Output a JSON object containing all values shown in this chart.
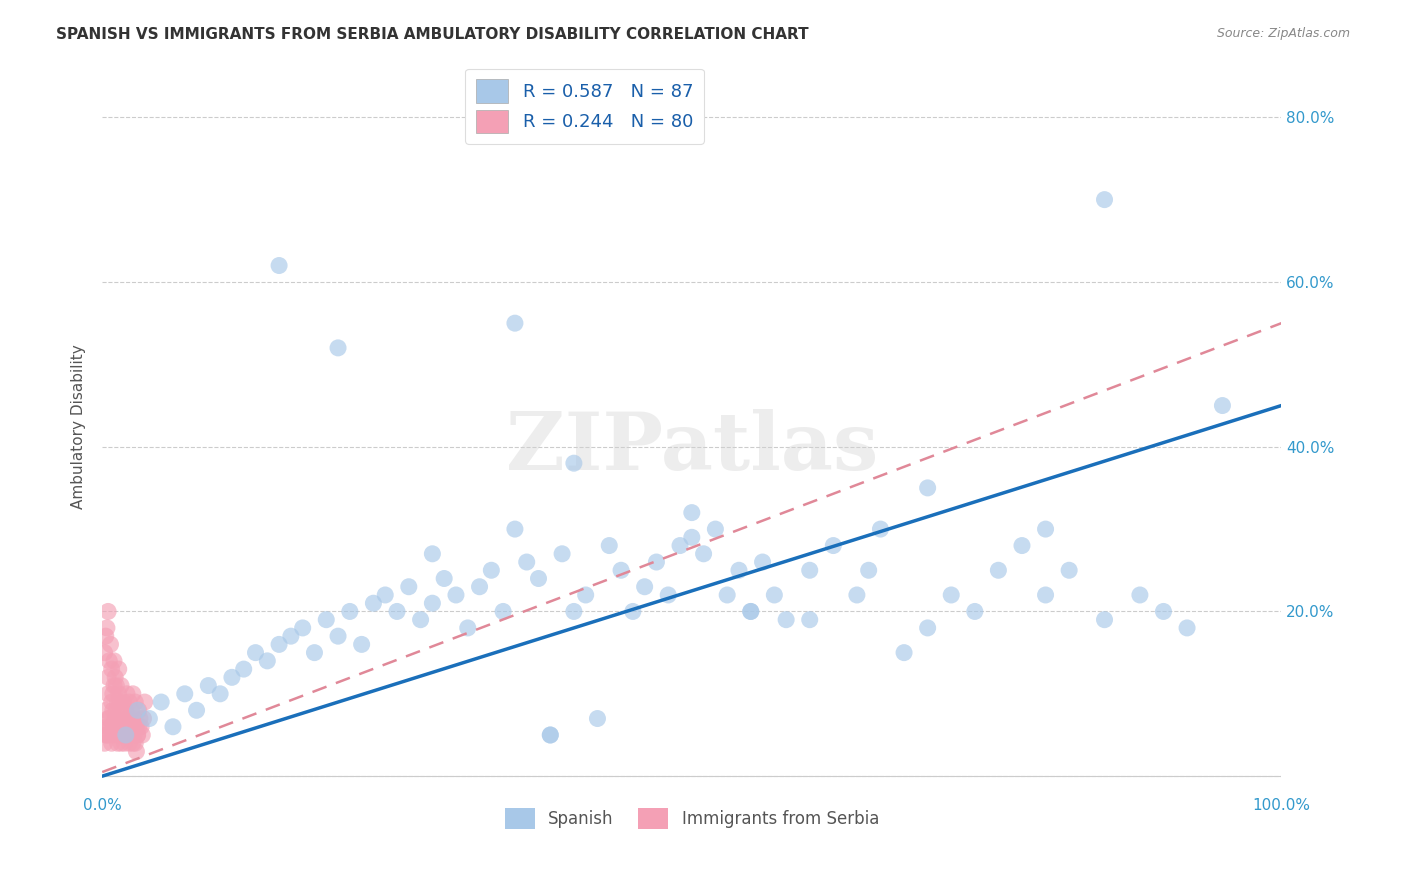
{
  "title": "SPANISH VS IMMIGRANTS FROM SERBIA AMBULATORY DISABILITY CORRELATION CHART",
  "source": "Source: ZipAtlas.com",
  "ylabel": "Ambulatory Disability",
  "watermark": "ZIPatlas",
  "R_spanish": 0.587,
  "N_spanish": 87,
  "R_serbia": 0.244,
  "N_serbia": 80,
  "spanish_color": "#a8c8e8",
  "serbia_color": "#f4a0b5",
  "spanish_line_color": "#1a6fba",
  "serbia_line_color": "#e08898",
  "background_color": "#ffffff",
  "grid_color": "#cccccc",
  "xlim": [
    0.0,
    1.0
  ],
  "ylim": [
    -0.02,
    0.87
  ],
  "spanish_x": [
    0.02,
    0.03,
    0.04,
    0.05,
    0.06,
    0.07,
    0.08,
    0.09,
    0.1,
    0.11,
    0.12,
    0.13,
    0.14,
    0.15,
    0.16,
    0.17,
    0.18,
    0.19,
    0.2,
    0.21,
    0.22,
    0.23,
    0.24,
    0.25,
    0.26,
    0.27,
    0.28,
    0.29,
    0.3,
    0.31,
    0.32,
    0.33,
    0.34,
    0.35,
    0.36,
    0.37,
    0.38,
    0.39,
    0.4,
    0.41,
    0.42,
    0.43,
    0.44,
    0.45,
    0.46,
    0.47,
    0.48,
    0.49,
    0.5,
    0.51,
    0.52,
    0.53,
    0.54,
    0.55,
    0.56,
    0.57,
    0.58,
    0.6,
    0.62,
    0.64,
    0.66,
    0.68,
    0.7,
    0.72,
    0.74,
    0.76,
    0.78,
    0.8,
    0.82,
    0.85,
    0.88,
    0.9,
    0.92,
    0.95,
    0.15,
    0.2,
    0.28,
    0.35,
    0.4,
    0.5,
    0.6,
    0.7,
    0.8,
    0.38,
    0.55,
    0.65,
    0.85
  ],
  "spanish_y": [
    0.05,
    0.08,
    0.07,
    0.09,
    0.06,
    0.1,
    0.08,
    0.11,
    0.1,
    0.12,
    0.13,
    0.15,
    0.14,
    0.16,
    0.17,
    0.18,
    0.15,
    0.19,
    0.17,
    0.2,
    0.16,
    0.21,
    0.22,
    0.2,
    0.23,
    0.19,
    0.21,
    0.24,
    0.22,
    0.18,
    0.23,
    0.25,
    0.2,
    0.55,
    0.26,
    0.24,
    0.05,
    0.27,
    0.38,
    0.22,
    0.07,
    0.28,
    0.25,
    0.2,
    0.23,
    0.26,
    0.22,
    0.28,
    0.29,
    0.27,
    0.3,
    0.22,
    0.25,
    0.2,
    0.26,
    0.22,
    0.19,
    0.25,
    0.28,
    0.22,
    0.3,
    0.15,
    0.18,
    0.22,
    0.2,
    0.25,
    0.28,
    0.3,
    0.25,
    0.19,
    0.22,
    0.2,
    0.18,
    0.45,
    0.62,
    0.52,
    0.27,
    0.3,
    0.2,
    0.32,
    0.19,
    0.35,
    0.22,
    0.05,
    0.2,
    0.25,
    0.7
  ],
  "serbia_x": [
    0.002,
    0.003,
    0.003,
    0.004,
    0.004,
    0.005,
    0.005,
    0.005,
    0.006,
    0.006,
    0.007,
    0.007,
    0.008,
    0.008,
    0.009,
    0.009,
    0.01,
    0.01,
    0.011,
    0.011,
    0.012,
    0.012,
    0.013,
    0.013,
    0.014,
    0.014,
    0.015,
    0.015,
    0.016,
    0.016,
    0.017,
    0.018,
    0.019,
    0.02,
    0.021,
    0.022,
    0.023,
    0.024,
    0.025,
    0.026,
    0.027,
    0.028,
    0.029,
    0.03,
    0.031,
    0.032,
    0.033,
    0.034,
    0.035,
    0.036,
    0.002,
    0.003,
    0.004,
    0.005,
    0.006,
    0.007,
    0.008,
    0.009,
    0.01,
    0.011,
    0.012,
    0.013,
    0.014,
    0.015,
    0.016,
    0.017,
    0.018,
    0.019,
    0.02,
    0.021,
    0.022,
    0.023,
    0.024,
    0.025,
    0.026,
    0.027,
    0.028,
    0.029,
    0.03,
    0.031
  ],
  "serbia_y": [
    0.15,
    0.08,
    0.17,
    0.05,
    0.18,
    0.12,
    0.1,
    0.2,
    0.07,
    0.14,
    0.06,
    0.16,
    0.09,
    0.13,
    0.1,
    0.08,
    0.11,
    0.14,
    0.07,
    0.12,
    0.08,
    0.11,
    0.09,
    0.06,
    0.1,
    0.13,
    0.07,
    0.09,
    0.08,
    0.11,
    0.06,
    0.09,
    0.05,
    0.08,
    0.1,
    0.07,
    0.09,
    0.06,
    0.08,
    0.1,
    0.07,
    0.09,
    0.06,
    0.05,
    0.08,
    0.07,
    0.06,
    0.05,
    0.07,
    0.09,
    0.04,
    0.05,
    0.06,
    0.07,
    0.05,
    0.06,
    0.04,
    0.05,
    0.06,
    0.07,
    0.05,
    0.04,
    0.06,
    0.05,
    0.04,
    0.06,
    0.05,
    0.04,
    0.06,
    0.05,
    0.07,
    0.04,
    0.05,
    0.06,
    0.04,
    0.05,
    0.04,
    0.03,
    0.05,
    0.06
  ],
  "spanish_line": [
    0.0,
    1.0,
    0.0,
    0.45
  ],
  "serbia_line": [
    0.0,
    1.0,
    0.005,
    0.55
  ]
}
